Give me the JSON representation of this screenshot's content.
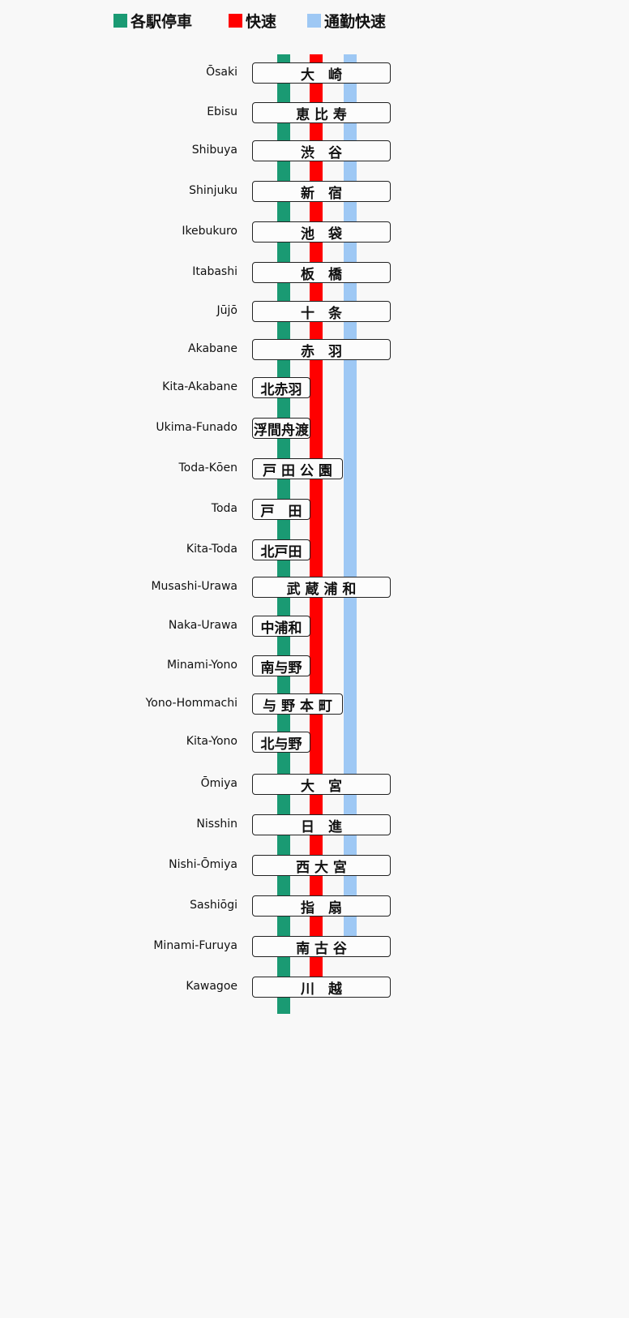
{
  "legend": [
    {
      "label": "各駅停車",
      "color": "#1a9a73"
    },
    {
      "label": "快速",
      "color": "#ff0000"
    },
    {
      "label": "通勤快速",
      "color": "#9ec8f4"
    }
  ],
  "stations": [
    {
      "romaji": "Ōsaki",
      "kanji": "大　崎",
      "box": "wide"
    },
    {
      "romaji": "Ebisu",
      "kanji": "恵 比 寿",
      "box": "wide"
    },
    {
      "romaji": "Shibuya",
      "kanji": "渋　谷",
      "box": "wide"
    },
    {
      "romaji": "Shinjuku",
      "kanji": "新　宿",
      "box": "wide"
    },
    {
      "romaji": "Ikebukuro",
      "kanji": "池　袋",
      "box": "wide"
    },
    {
      "romaji": "Itabashi",
      "kanji": "板　橋",
      "box": "wide"
    },
    {
      "romaji": "Jūjō",
      "kanji": "十　条",
      "box": "wide"
    },
    {
      "romaji": "Akabane",
      "kanji": "赤　羽",
      "box": "wide"
    },
    {
      "romaji": "Kita-Akabane",
      "kanji": "北赤羽",
      "box": "small"
    },
    {
      "romaji": "Ukima-Funado",
      "kanji": "浮間舟渡",
      "box": "small"
    },
    {
      "romaji": "Toda-Kōen",
      "kanji": "戸 田 公 園",
      "box": "medium"
    },
    {
      "romaji": "Toda",
      "kanji": "戸　田",
      "box": "small"
    },
    {
      "romaji": "Kita-Toda",
      "kanji": "北戸田",
      "box": "small"
    },
    {
      "romaji": "Musashi-Urawa",
      "kanji": "武 蔵 浦 和",
      "box": "wide"
    },
    {
      "romaji": "Naka-Urawa",
      "kanji": "中浦和",
      "box": "small"
    },
    {
      "romaji": "Minami-Yono",
      "kanji": "南与野",
      "box": "small"
    },
    {
      "romaji": "Yono-Hommachi",
      "kanji": "与 野 本 町",
      "box": "medium"
    },
    {
      "romaji": "Kita-Yono",
      "kanji": "北与野",
      "box": "small"
    },
    {
      "romaji": "Ōmiya",
      "kanji": "大　宮",
      "box": "wide"
    },
    {
      "romaji": "Nisshin",
      "kanji": "日　進",
      "box": "wide"
    },
    {
      "romaji": "Nishi-Ōmiya",
      "kanji": "西 大 宮",
      "box": "wide"
    },
    {
      "romaji": "Sashiōgi",
      "kanji": "指　扇",
      "box": "wide"
    },
    {
      "romaji": "Minami-Furuya",
      "kanji": "南 古 谷",
      "box": "wide"
    },
    {
      "romaji": "Kawagoe",
      "kanji": "川　越",
      "box": "wide"
    }
  ]
}
